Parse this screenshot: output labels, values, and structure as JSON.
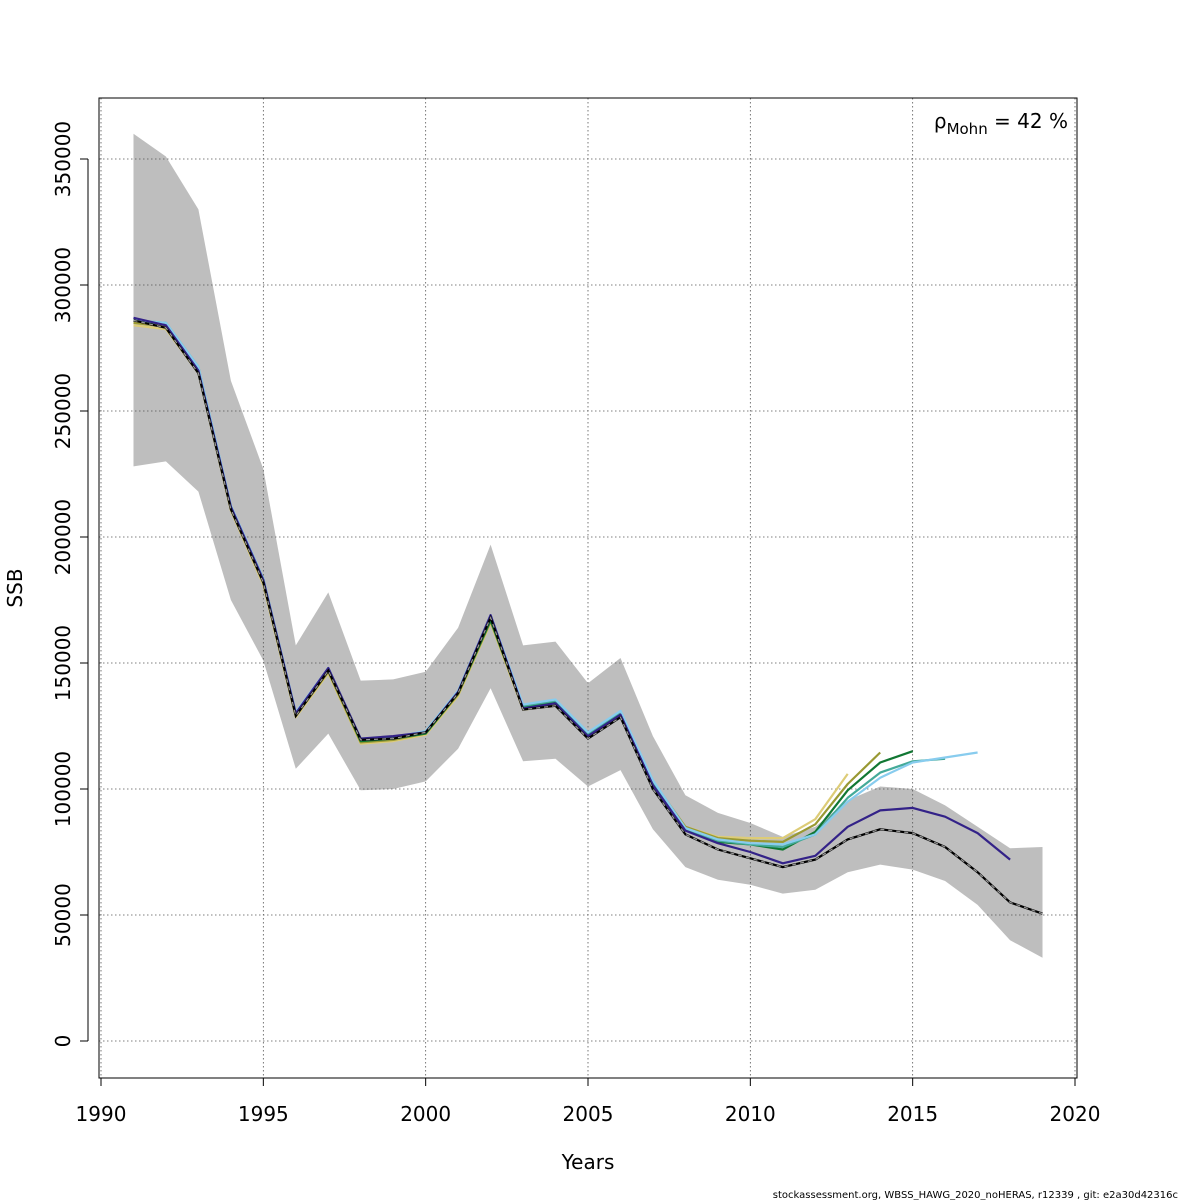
{
  "chart_data": {
    "type": "line",
    "xlabel": "Years",
    "ylabel": "SSB",
    "xlim": [
      1990,
      2020
    ],
    "ylim": [
      0,
      365000
    ],
    "x_ticks": [
      "1990",
      "1995",
      "2000",
      "2005",
      "2010",
      "2015",
      "2020"
    ],
    "y_ticks": [
      "0",
      "50000",
      "100000",
      "150000",
      "200000",
      "250000",
      "300000",
      "350000"
    ],
    "grid": true,
    "annotation": {
      "prefix": "ρ",
      "subscript": "Mohn",
      "suffix": " = 42 %"
    },
    "confidence_band": {
      "x": [
        1991,
        1992,
        1993,
        1994,
        1995,
        1996,
        1997,
        1998,
        1999,
        2000,
        2001,
        2002,
        2003,
        2004,
        2005,
        2006,
        2007,
        2008,
        2009,
        2010,
        2011,
        2012,
        2013,
        2014,
        2015,
        2016,
        2017,
        2018,
        2019
      ],
      "upper": [
        360000,
        351000,
        330000,
        262000,
        227000,
        157000,
        178000,
        143000,
        143500,
        146500,
        164000,
        197000,
        157000,
        158500,
        142000,
        152000,
        121000,
        97500,
        90500,
        86500,
        81000,
        85000,
        95500,
        101000,
        100000,
        93500,
        85000,
        76500,
        77000
      ],
      "lower": [
        228000,
        230000,
        218000,
        175000,
        151000,
        108000,
        122000,
        99500,
        100000,
        103000,
        116000,
        140000,
        111000,
        112000,
        101000,
        107500,
        84000,
        69000,
        64000,
        62000,
        58500,
        60000,
        67000,
        70000,
        68000,
        63500,
        54000,
        40000,
        33000
      ],
      "color": "#bebebe"
    },
    "series": [
      {
        "color": "#000000",
        "dashed": true,
        "x": [
          1991,
          1992,
          1993,
          1994,
          1995,
          1996,
          1997,
          1998,
          1999,
          2000,
          2001,
          2002,
          2003,
          2004,
          2005,
          2006,
          2007,
          2008,
          2009,
          2010,
          2011,
          2012,
          2013,
          2014,
          2015,
          2016,
          2017,
          2018,
          2019
        ],
        "values": [
          286000,
          283000,
          265000,
          211000,
          182000,
          129000,
          147000,
          119500,
          120000,
          122500,
          138000,
          168000,
          131500,
          133000,
          120000,
          128500,
          100000,
          82000,
          76000,
          72500,
          69000,
          72000,
          80000,
          84000,
          82500,
          77000,
          67000,
          55000,
          50500
        ]
      },
      {
        "color": "#332288",
        "x": [
          1991,
          1992,
          1993,
          1994,
          1995,
          1996,
          1997,
          1998,
          1999,
          2000,
          2001,
          2002,
          2003,
          2004,
          2005,
          2006,
          2007,
          2008,
          2009,
          2010,
          2011,
          2012,
          2013,
          2014,
          2015,
          2016,
          2017,
          2018
        ],
        "values": [
          287000,
          284000,
          266000,
          212000,
          183000,
          130000,
          148000,
          120000,
          121000,
          122500,
          138500,
          169000,
          132000,
          134000,
          121000,
          129500,
          101500,
          83500,
          78500,
          75000,
          70500,
          73500,
          85000,
          91500,
          92500,
          89000,
          82500,
          72000
        ]
      },
      {
        "color": "#88ccee",
        "x": [
          1991,
          1992,
          1993,
          1994,
          1995,
          1996,
          1997,
          1998,
          1999,
          2000,
          2001,
          2002,
          2003,
          2004,
          2005,
          2006,
          2007,
          2008,
          2009,
          2010,
          2011,
          2012,
          2013,
          2014,
          2015,
          2016,
          2017
        ],
        "values": [
          286000,
          285000,
          267500,
          212500,
          183500,
          130500,
          148000,
          120000,
          120500,
          123000,
          139000,
          169000,
          133500,
          135500,
          122500,
          131000,
          103500,
          84500,
          80000,
          78500,
          78000,
          82000,
          95000,
          104500,
          110500,
          112500,
          114500
        ]
      },
      {
        "color": "#44aa99",
        "x": [
          1991,
          1992,
          1993,
          1994,
          1995,
          1996,
          1997,
          1998,
          1999,
          2000,
          2001,
          2002,
          2003,
          2004,
          2005,
          2006,
          2007,
          2008,
          2009,
          2010,
          2011,
          2012,
          2013,
          2014,
          2015,
          2016
        ],
        "values": [
          286000,
          285000,
          267500,
          212000,
          183500,
          130000,
          148000,
          119500,
          120000,
          122500,
          138500,
          168000,
          133000,
          135000,
          122000,
          130500,
          103000,
          84000,
          79500,
          78000,
          77000,
          82000,
          96500,
          106500,
          111000,
          112000
        ]
      },
      {
        "color": "#117733",
        "x": [
          1991,
          1992,
          1993,
          1994,
          1995,
          1996,
          1997,
          1998,
          1999,
          2000,
          2001,
          2002,
          2003,
          2004,
          2005,
          2006,
          2007,
          2008,
          2009,
          2010,
          2011,
          2012,
          2013,
          2014,
          2015
        ],
        "values": [
          286000,
          284500,
          267000,
          212000,
          183000,
          130000,
          147500,
          119000,
          120000,
          122000,
          138000,
          167000,
          132500,
          134500,
          121500,
          130000,
          103000,
          84000,
          79000,
          78000,
          76000,
          83000,
          99500,
          110500,
          115000
        ]
      },
      {
        "color": "#999933",
        "x": [
          1991,
          1992,
          1993,
          1994,
          1995,
          1996,
          1997,
          1998,
          1999,
          2000,
          2001,
          2002,
          2003,
          2004,
          2005,
          2006,
          2007,
          2008,
          2009,
          2010,
          2011,
          2012,
          2013,
          2014
        ],
        "values": [
          285000,
          283500,
          266000,
          211000,
          182000,
          129000,
          146500,
          118500,
          119500,
          122000,
          137500,
          166500,
          132000,
          133500,
          121000,
          129500,
          103000,
          85000,
          80500,
          79500,
          79000,
          86000,
          102000,
          114500
        ]
      },
      {
        "color": "#ddcc77",
        "x": [
          1991,
          1992,
          1993,
          1994,
          1995,
          1996,
          1997,
          1998,
          1999,
          2000,
          2001,
          2002,
          2003,
          2004,
          2005,
          2006,
          2007,
          2008,
          2009,
          2010,
          2011,
          2012,
          2013
        ],
        "values": [
          284000,
          282500,
          265000,
          210500,
          181000,
          128500,
          146000,
          118000,
          119000,
          121500,
          137000,
          166000,
          131500,
          133000,
          120500,
          129000,
          102500,
          85000,
          81000,
          80500,
          80500,
          88000,
          106000
        ]
      }
    ],
    "footer": "stockassessment.org, WBSS_HAWG_2020_noHERAS, r12339 , git: e2a30d42316c"
  }
}
